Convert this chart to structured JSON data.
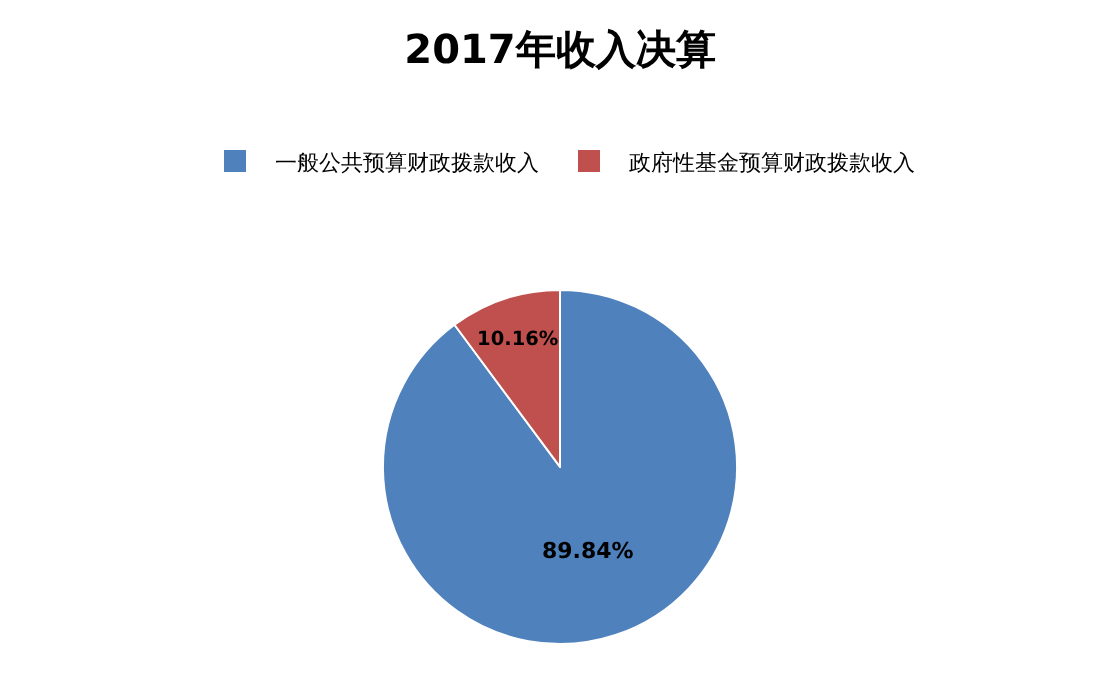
{
  "chart_data": {
    "type": "pie",
    "title": "2017年收入决算",
    "categories": [
      "一般公共预算财政拨款收入",
      "政府性基金预算财政拨款收入"
    ],
    "values": [
      89.84,
      10.16
    ],
    "colors": [
      "#4f81bd",
      "#c0504d"
    ],
    "value_labels": [
      "89.84%",
      "10.16%"
    ],
    "legend": "top"
  }
}
